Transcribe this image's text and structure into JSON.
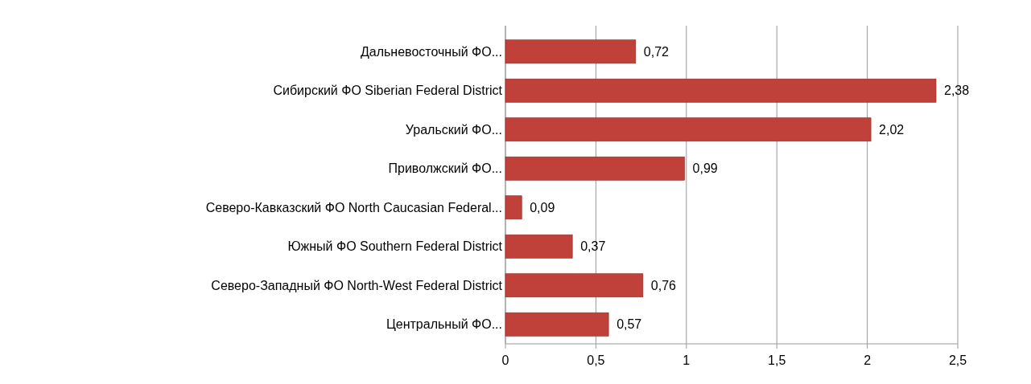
{
  "chart_data": {
    "type": "bar",
    "orientation": "horizontal",
    "categories": [
      "Дальневосточный ФО...",
      "Сибирский ФО Siberian Federal District",
      "Уральский ФО...",
      "Приволжский ФО...",
      "Северо-Кавказский ФО North Caucasian Federal...",
      "Южный ФО Southern Federal District",
      "Северо-Западный ФО North-West Federal District",
      "Центральный ФО..."
    ],
    "values": [
      0.72,
      2.38,
      2.02,
      0.99,
      0.09,
      0.37,
      0.76,
      0.57
    ],
    "value_labels": [
      "0,72",
      "2,38",
      "2,02",
      "0,99",
      "0,09",
      "0,37",
      "0,76",
      "0,57"
    ],
    "color": "#c0403a",
    "xlim": [
      0,
      2.5
    ],
    "xticks": [
      0,
      {
        "value": 0.5,
        "label": "0,5"
      },
      1,
      {
        "value": 1.5,
        "label": "1,5"
      },
      2,
      {
        "value": 2.5,
        "label": "2,5"
      }
    ],
    "grid": "x"
  }
}
